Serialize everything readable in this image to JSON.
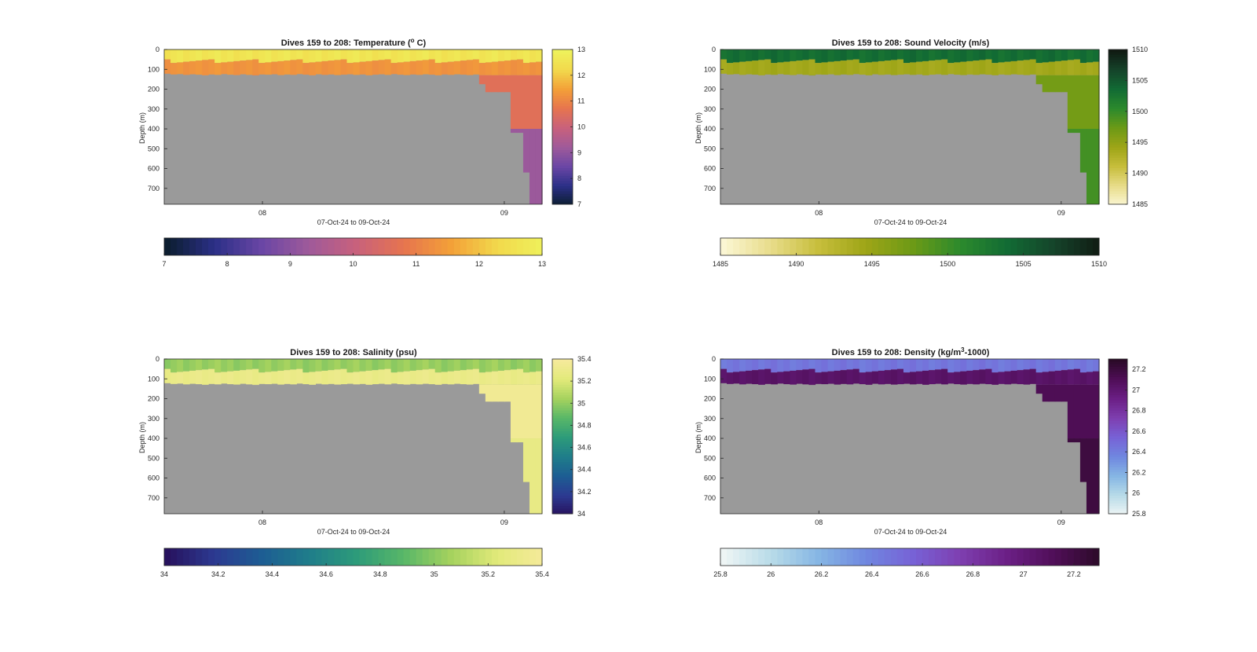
{
  "chart_data": [
    {
      "type": "heatmap",
      "variable": "temperature",
      "title_main": "Dives 159 to 208: Temperature (",
      "title_sup": "o",
      "title_end": " C)",
      "xlabel": "07-Oct-24 to 09-Oct-24",
      "ylabel": "Depth (m)",
      "x_ticks": [
        "08",
        "09"
      ],
      "y_ticks": [
        0,
        100,
        200,
        300,
        400,
        500,
        600,
        700
      ],
      "ylim": [
        0,
        780
      ],
      "clim": [
        7,
        13
      ],
      "side_colorbar_ticks": [
        7,
        8,
        9,
        10,
        11,
        12,
        13
      ],
      "bottom_colorbar_ticks": [
        7,
        8,
        9,
        10,
        11,
        12,
        13
      ],
      "colormap": [
        "#0c1e30",
        "#2b2f87",
        "#6a46a5",
        "#9f5a9a",
        "#c8617c",
        "#e6744f",
        "#f3a038",
        "#f2d94c",
        "#eef25c"
      ],
      "profile": {
        "surface_mixed_depth": 50,
        "surface_value": 12.6,
        "thermocline_value": 11.3,
        "deep_value": 10.6,
        "bottom_value": 9.2
      }
    },
    {
      "type": "heatmap",
      "variable": "sound_velocity",
      "title_main": "Dives 159 to 208: Sound Velocity (m/s)",
      "title_sup": "",
      "title_end": "",
      "xlabel": "07-Oct-24 to 09-Oct-24",
      "ylabel": "Depth (m)",
      "x_ticks": [
        "08",
        "09"
      ],
      "y_ticks": [
        0,
        100,
        200,
        300,
        400,
        500,
        600,
        700
      ],
      "ylim": [
        0,
        780
      ],
      "clim": [
        1485,
        1510
      ],
      "side_colorbar_ticks": [
        1485,
        1490,
        1495,
        1500,
        1505,
        1510
      ],
      "bottom_colorbar_ticks": [
        1485,
        1490,
        1495,
        1500,
        1505,
        1510
      ],
      "colormap": [
        "#fbf6d3",
        "#e8dc8a",
        "#c7be3c",
        "#9ea517",
        "#6c9a16",
        "#2c8a2c",
        "#126b34",
        "#15432a",
        "#101a12"
      ],
      "profile": {
        "surface_mixed_depth": 50,
        "surface_value": 1503.5,
        "thermocline_value": 1494.0,
        "deep_value": 1497.0,
        "bottom_value": 1499.5
      }
    },
    {
      "type": "heatmap",
      "variable": "salinity",
      "title_main": "Dives 159 to 208: Salinity (psu)",
      "title_sup": "",
      "title_end": "",
      "xlabel": "07-Oct-24 to 09-Oct-24",
      "ylabel": "Depth (m)",
      "x_ticks": [
        "08",
        "09"
      ],
      "y_ticks": [
        0,
        100,
        200,
        300,
        400,
        500,
        600,
        700
      ],
      "ylim": [
        0,
        780
      ],
      "clim": [
        34,
        35.4
      ],
      "side_colorbar_ticks": [
        34,
        34.2,
        34.4,
        34.6,
        34.8,
        35,
        35.2,
        35.4
      ],
      "bottom_colorbar_ticks": [
        34,
        34.2,
        34.4,
        34.6,
        34.8,
        35,
        35.2,
        35.4
      ],
      "colormap": [
        "#27125e",
        "#2c3a91",
        "#1d5d93",
        "#1f7d8a",
        "#2d9b7a",
        "#58b768",
        "#a5d25e",
        "#e2ea7a",
        "#f6ea9c"
      ],
      "profile": {
        "surface_mixed_depth": 50,
        "surface_value": 35.02,
        "thermocline_value": 35.3,
        "deep_value": 35.36,
        "bottom_value": 35.28
      }
    },
    {
      "type": "heatmap",
      "variable": "density",
      "title_main": "Dives 159 to 208: Density (kg/m",
      "title_sup": "3",
      "title_end": "-1000)",
      "xlabel": "07-Oct-24 to 09-Oct-24",
      "ylabel": "Depth (m)",
      "x_ticks": [
        "08",
        "09"
      ],
      "y_ticks": [
        0,
        100,
        200,
        300,
        400,
        500,
        600,
        700
      ],
      "ylim": [
        0,
        780
      ],
      "clim": [
        25.8,
        27.3
      ],
      "side_colorbar_ticks": [
        25.8,
        26,
        26.2,
        26.4,
        26.6,
        26.8,
        27,
        27.2
      ],
      "bottom_colorbar_ticks": [
        25.8,
        26,
        26.2,
        26.4,
        26.6,
        26.8,
        27,
        27.2
      ],
      "colormap": [
        "#eef5f5",
        "#b8dbe8",
        "#86b6e4",
        "#7088e0",
        "#7762d6",
        "#7e3fb0",
        "#6b1f85",
        "#4f0e57",
        "#2a0a26"
      ],
      "profile": {
        "surface_mixed_depth": 50,
        "surface_value": 26.45,
        "thermocline_value": 27.05,
        "deep_value": 27.12,
        "bottom_value": 27.2
      }
    }
  ]
}
